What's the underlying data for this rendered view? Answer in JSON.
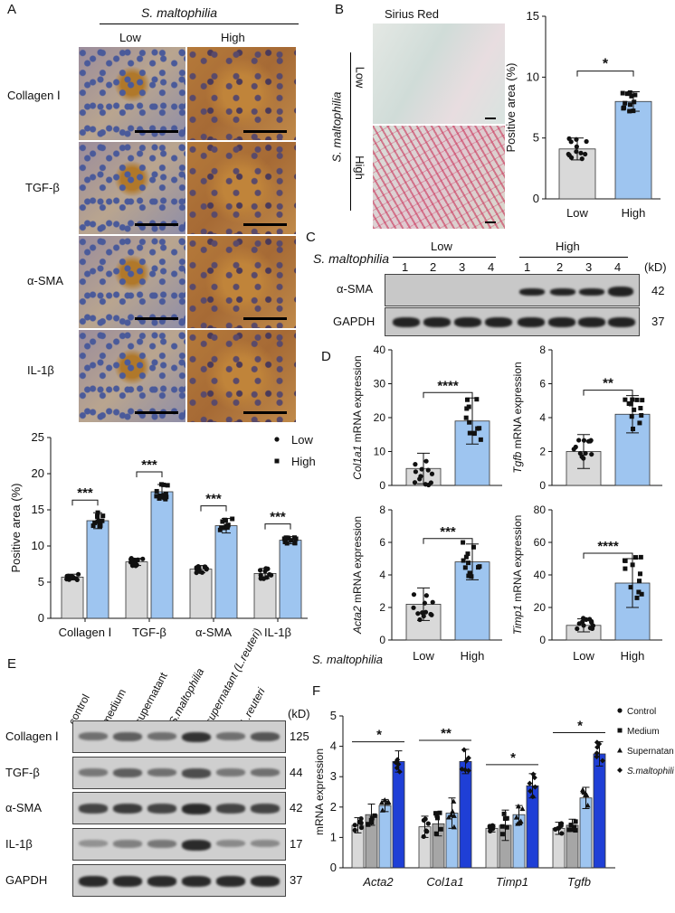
{
  "panels": {
    "A": "A",
    "B": "B",
    "C": "C",
    "D": "D",
    "E": "E",
    "F": "F"
  },
  "panelA": {
    "group_title": "S. maltophilia",
    "col_low": "Low",
    "col_high": "High",
    "rows": [
      "Collagen Ⅰ",
      "TGF-β",
      "α-SMA",
      "IL-1β"
    ]
  },
  "panelB": {
    "stain_title": "Sirius Red",
    "side_label": "S. maltophilia",
    "row_low": "Low",
    "row_high": "High"
  },
  "panelC": {
    "row_label": "S. maltophilia",
    "group_low": "Low",
    "group_high": "High",
    "lanes": [
      "1",
      "2",
      "3",
      "4",
      "1",
      "2",
      "3",
      "4"
    ],
    "kd": "(kD)",
    "blots": [
      {
        "name": "α-SMA",
        "mw": "42"
      },
      {
        "name": "GAPDH",
        "mw": "37"
      }
    ]
  },
  "panelD_footer": {
    "label": "S. maltophilia",
    "low": "Low",
    "high": "High"
  },
  "panelE": {
    "lanes": [
      "control",
      "medium",
      "supernatant",
      "S.maltophilia",
      "supernatant (L.reuteri)",
      "L.reuteri"
    ],
    "kd": "(kD)",
    "blots": [
      {
        "name": "Collagen Ⅰ",
        "mw": "125"
      },
      {
        "name": "TGF-β",
        "mw": "44"
      },
      {
        "name": "α-SMA",
        "mw": "42"
      },
      {
        "name": "IL-1β",
        "mw": "17"
      },
      {
        "name": "GAPDH",
        "mw": "37"
      }
    ]
  },
  "colors": {
    "low": "#d9d9d9",
    "high": "#9ec5f0",
    "control": "#d9d9d9",
    "medium": "#a6a6a6",
    "supernatant": "#9ec5f0",
    "smaltophilia": "#1f3fd6"
  },
  "chart_data": [
    {
      "id": "A-bar",
      "type": "bar",
      "categories": [
        "Collagen Ⅰ",
        "TGF-β",
        "α-SMA",
        "IL-1β"
      ],
      "series": [
        {
          "name": "Low",
          "values": [
            5.7,
            7.8,
            6.8,
            6.2
          ],
          "errors": [
            0.4,
            0.5,
            0.5,
            0.7
          ]
        },
        {
          "name": "High",
          "values": [
            13.5,
            17.5,
            12.8,
            10.8
          ],
          "errors": [
            1.1,
            1.0,
            1.0,
            0.5
          ]
        }
      ],
      "significance": [
        "***",
        "***",
        "***",
        "***"
      ],
      "ylabel": "Positive area (%)",
      "ylim": [
        0,
        25
      ],
      "yticks": [
        "0",
        "5",
        "10",
        "15",
        "20",
        "25"
      ],
      "legend_position": "top-right"
    },
    {
      "id": "B-bar",
      "type": "bar",
      "categories": [
        "Low",
        "High"
      ],
      "values": [
        4.1,
        8.0
      ],
      "errors": [
        0.9,
        0.8
      ],
      "significance": "*",
      "ylabel": "Positive area (%)",
      "ylim": [
        0,
        15
      ],
      "yticks": [
        "0",
        "5",
        "10",
        "15"
      ]
    },
    {
      "id": "D-col1a1",
      "type": "bar",
      "categories": [
        "Low",
        "High"
      ],
      "values": [
        5.0,
        19.0
      ],
      "errors": [
        4.5,
        6.8
      ],
      "significance": "****",
      "ylabel_gene": "Col1a1",
      "ylabel_rest": " mRNA expression",
      "ylim": [
        0,
        40
      ],
      "yticks": [
        "0",
        "10",
        "20",
        "30",
        "40"
      ]
    },
    {
      "id": "D-tgfb",
      "type": "bar",
      "categories": [
        "Low",
        "High"
      ],
      "values": [
        2.0,
        4.2
      ],
      "errors": [
        1.0,
        1.1
      ],
      "significance": "**",
      "ylabel_gene": "Tgfb",
      "ylabel_rest": " mRNA expression",
      "ylim": [
        0,
        8
      ],
      "yticks": [
        "0",
        "2",
        "4",
        "6",
        "8"
      ]
    },
    {
      "id": "D-acta2",
      "type": "bar",
      "categories": [
        "Low",
        "High"
      ],
      "values": [
        2.2,
        4.8
      ],
      "errors": [
        1.0,
        1.1
      ],
      "significance": "***",
      "ylabel_gene": "Acta2",
      "ylabel_rest": " mRNA expression",
      "ylim": [
        0,
        8
      ],
      "yticks": [
        "0",
        "2",
        "4",
        "6",
        "8"
      ]
    },
    {
      "id": "D-timp1",
      "type": "bar",
      "categories": [
        "Low",
        "High"
      ],
      "values": [
        9.0,
        35.0
      ],
      "errors": [
        4.0,
        15.0
      ],
      "significance": "****",
      "ylabel_gene": "Timp1",
      "ylabel_rest": " mRNA expression",
      "ylim": [
        0,
        80
      ],
      "yticks": [
        "0",
        "20",
        "40",
        "60",
        "80"
      ]
    },
    {
      "id": "F-bar",
      "type": "bar",
      "categories": [
        "Acta2",
        "Col1a1",
        "Timp1",
        "Tgfb"
      ],
      "series": [
        {
          "name": "Control",
          "values": [
            1.4,
            1.35,
            1.3,
            1.3
          ],
          "errors": [
            0.25,
            0.35,
            0.12,
            0.2
          ]
        },
        {
          "name": "Medium",
          "values": [
            1.75,
            1.45,
            1.4,
            1.4
          ],
          "errors": [
            0.35,
            0.4,
            0.5,
            0.2
          ]
        },
        {
          "name": "Supernatant",
          "values": [
            2.05,
            1.8,
            1.75,
            2.3
          ],
          "errors": [
            0.2,
            0.5,
            0.3,
            0.35
          ]
        },
        {
          "name": "S.maltophilia",
          "values": [
            3.5,
            3.5,
            2.7,
            3.75
          ],
          "errors": [
            0.35,
            0.4,
            0.4,
            0.4
          ]
        }
      ],
      "significance": [
        "*",
        "**",
        "*",
        "*"
      ],
      "ylabel": "mRNA expression",
      "ylim": [
        0,
        5
      ],
      "yticks": [
        "0",
        "1",
        "2",
        "3",
        "4",
        "5"
      ],
      "legend_position": "top-right"
    }
  ]
}
